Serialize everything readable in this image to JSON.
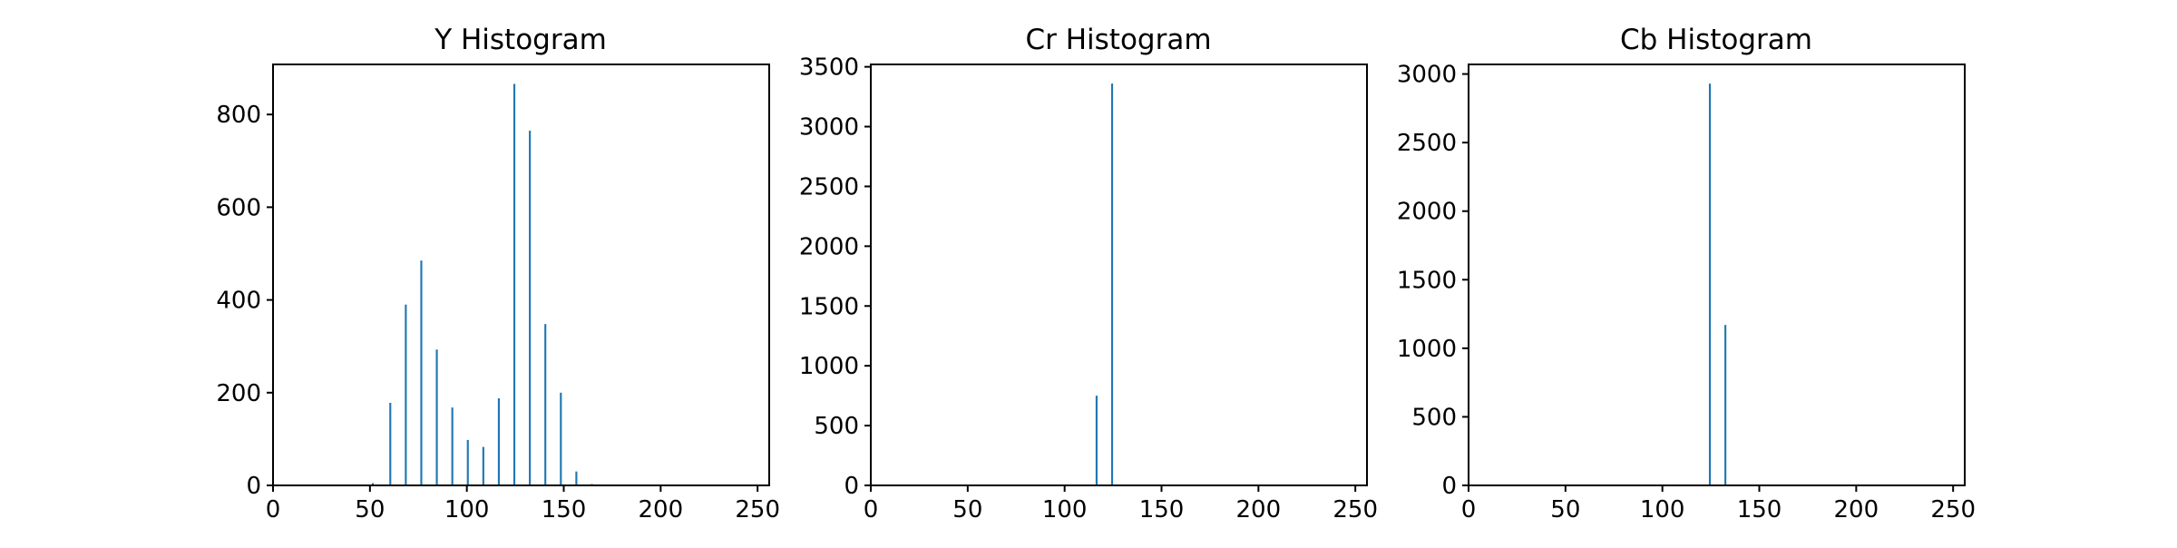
{
  "chart_data": [
    {
      "type": "bar",
      "title": "Y Histogram",
      "xlabel": "",
      "ylabel": "",
      "xlim": [
        0,
        256
      ],
      "ylim": [
        0,
        908
      ],
      "xticks": [
        0,
        50,
        100,
        150,
        200,
        250
      ],
      "yticks": [
        0,
        200,
        400,
        600,
        800
      ],
      "bin_width": 1,
      "x": [
        51,
        60,
        68,
        76,
        84,
        92,
        100,
        108,
        116,
        124,
        132,
        140,
        148,
        156,
        164
      ],
      "values": [
        5,
        178,
        390,
        485,
        293,
        168,
        98,
        83,
        188,
        866,
        765,
        348,
        200,
        30,
        3
      ],
      "bar_color": "#1f77b4",
      "grid": false
    },
    {
      "type": "bar",
      "title": "Cr Histogram",
      "xlabel": "",
      "ylabel": "",
      "xlim": [
        0,
        256
      ],
      "ylim": [
        0,
        3520
      ],
      "xticks": [
        0,
        50,
        100,
        150,
        200,
        250
      ],
      "yticks": [
        0,
        500,
        1000,
        1500,
        2000,
        2500,
        3000,
        3500
      ],
      "bin_width": 1,
      "x": [
        116,
        124,
        204
      ],
      "values": [
        750,
        3360,
        3
      ],
      "bar_color": "#1f77b4",
      "grid": false
    },
    {
      "type": "bar",
      "title": "Cb Histogram",
      "xlabel": "",
      "ylabel": "",
      "xlim": [
        0,
        256
      ],
      "ylim": [
        0,
        3070
      ],
      "xticks": [
        0,
        50,
        100,
        150,
        200,
        250
      ],
      "yticks": [
        0,
        500,
        1000,
        1500,
        2000,
        2500,
        3000
      ],
      "bin_width": 1,
      "x": [
        124,
        132
      ],
      "values": [
        2930,
        1170
      ],
      "bar_color": "#1f77b4",
      "grid": false
    }
  ]
}
